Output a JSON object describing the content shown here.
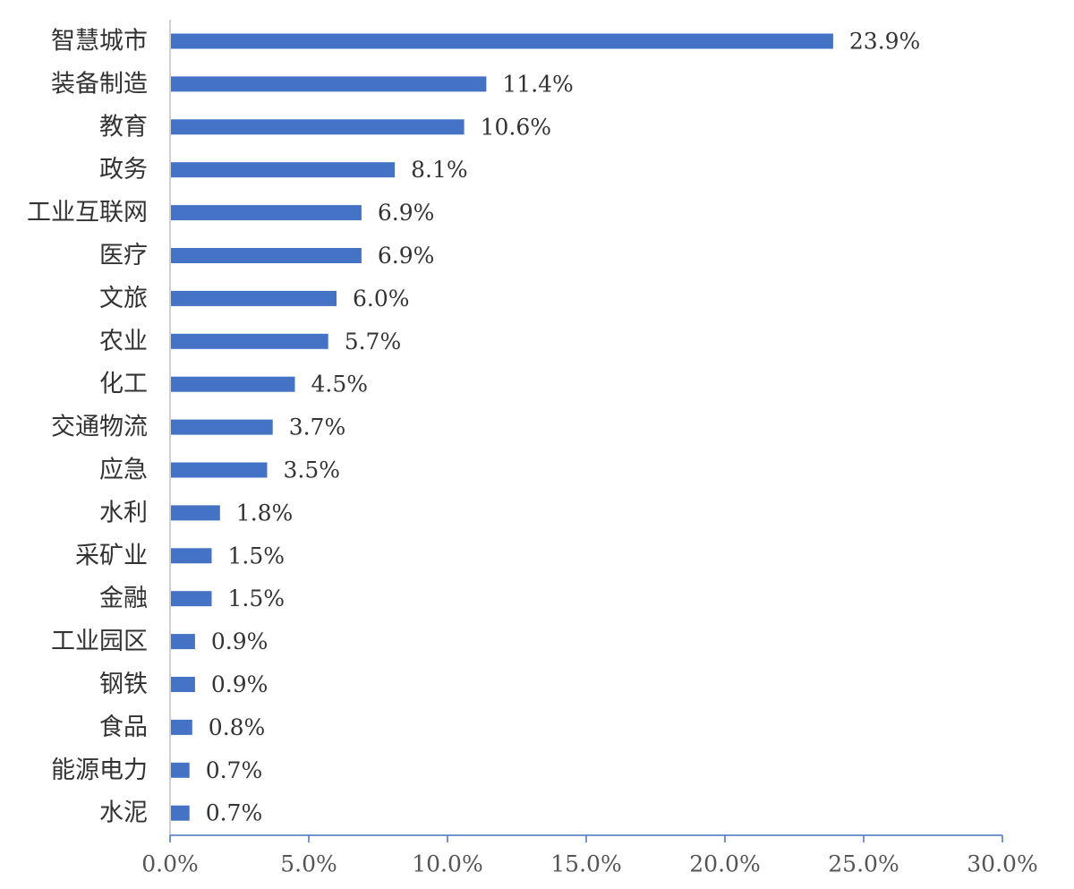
{
  "chart_data": {
    "type": "bar",
    "orientation": "horizontal",
    "title": "",
    "xlabel": "",
    "ylabel": "",
    "categories": [
      "智慧城市",
      "装备制造",
      "教育",
      "政务",
      "工业互联网",
      "医疗",
      "文旅",
      "农业",
      "化工",
      "交通物流",
      "应急",
      "水利",
      "采矿业",
      "金融",
      "工业园区",
      "钢铁",
      "食品",
      "能源电力",
      "水泥"
    ],
    "values": [
      23.9,
      11.4,
      10.6,
      8.1,
      6.9,
      6.9,
      6.0,
      5.7,
      4.5,
      3.7,
      3.5,
      1.8,
      1.5,
      1.5,
      0.9,
      0.9,
      0.8,
      0.7,
      0.7
    ],
    "value_labels": [
      "23.9%",
      "11.4%",
      "10.6%",
      "8.1%",
      "6.9%",
      "6.9%",
      "6.0%",
      "5.7%",
      "4.5%",
      "3.7%",
      "3.5%",
      "1.8%",
      "1.5%",
      "1.5%",
      "0.9%",
      "0.9%",
      "0.8%",
      "0.7%",
      "0.7%"
    ],
    "xlim": [
      0,
      30
    ],
    "x_ticks": [
      0,
      5,
      10,
      15,
      20,
      25,
      30
    ],
    "x_tick_labels": [
      "0.0%",
      "5.0%",
      "10.0%",
      "15.0%",
      "20.0%",
      "25.0%",
      "30.0%"
    ],
    "grid": false,
    "legend": "none",
    "bar_color": "#4472C4",
    "axis_color": "#4472C4"
  }
}
